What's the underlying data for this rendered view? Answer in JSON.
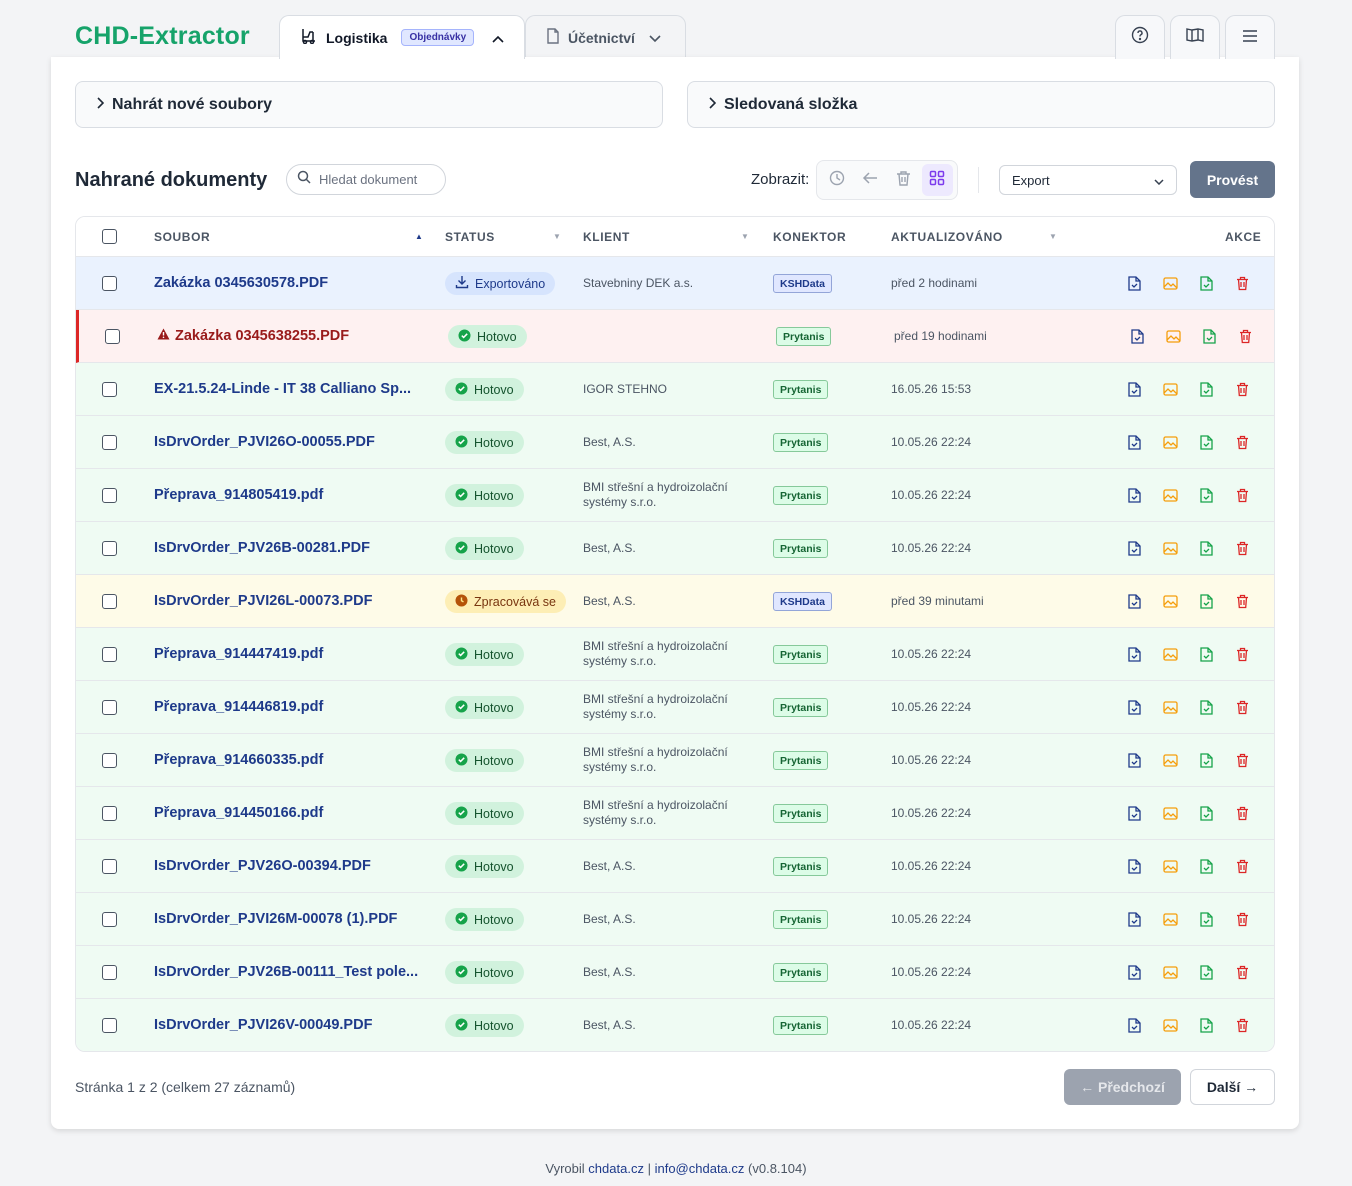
{
  "app": {
    "title": "CHD-Extractor"
  },
  "tabs": [
    {
      "label": "Logistika",
      "badge": "Objednávky",
      "icon": "forklift-icon",
      "active": true
    },
    {
      "label": "Účetnictví",
      "icon": "document-icon",
      "active": false
    }
  ],
  "top_buttons": [
    "help-icon",
    "book-icon",
    "menu-icon"
  ],
  "accordions": {
    "upload": "Nahrát nové soubory",
    "watched": "Sledovaná složka"
  },
  "section": {
    "title": "Nahrané dokumenty",
    "search_placeholder": "Hledat dokument",
    "view_label": "Zobrazit:",
    "export_value": "Export",
    "run_label": "Provést"
  },
  "table": {
    "headers": {
      "file": "SOUBOR",
      "status": "STATUS",
      "client": "KLIENT",
      "connector": "KONEKTOR",
      "updated": "AKTUALIZOVÁNO",
      "actions": "AKCE"
    },
    "rows": [
      {
        "file": "Zakázka 0345630578.PDF",
        "status": "Exportováno",
        "client": "Stavebniny DEK a.s.",
        "connector": "KSHData",
        "updated": "před 2 hodinami",
        "tone": "blue"
      },
      {
        "file": "Zakázka 0345638255.PDF",
        "status": "Hotovo",
        "client": "",
        "connector": "Prytanis",
        "updated": "před 19 hodinami",
        "tone": "red",
        "warning": true
      },
      {
        "file": "EX-21.5.24-Linde - IT 38 Calliano Sp...",
        "status": "Hotovo",
        "client": "IGOR STEHNO",
        "connector": "Prytanis",
        "updated": "16.05.26 15:53",
        "tone": "green"
      },
      {
        "file": "IsDrvOrder_PJVI26O-00055.PDF",
        "status": "Hotovo",
        "client": "Best, A.S.",
        "connector": "Prytanis",
        "updated": "10.05.26 22:24",
        "tone": "green"
      },
      {
        "file": "Přeprava_914805419.pdf",
        "status": "Hotovo",
        "client": "BMI střešní a hydroizolační systémy s.r.o.",
        "connector": "Prytanis",
        "updated": "10.05.26 22:24",
        "tone": "green"
      },
      {
        "file": "IsDrvOrder_PJV26B-00281.PDF",
        "status": "Hotovo",
        "client": "Best, A.S.",
        "connector": "Prytanis",
        "updated": "10.05.26 22:24",
        "tone": "green"
      },
      {
        "file": "IsDrvOrder_PJVI26L-00073.PDF",
        "status": "Zpracovává se",
        "client": "Best, A.S.",
        "connector": "KSHData",
        "updated": "před 39 minutami",
        "tone": "yellow"
      },
      {
        "file": "Přeprava_914447419.pdf",
        "status": "Hotovo",
        "client": "BMI střešní a hydroizolační systémy s.r.o.",
        "connector": "Prytanis",
        "updated": "10.05.26 22:24",
        "tone": "green"
      },
      {
        "file": "Přeprava_914446819.pdf",
        "status": "Hotovo",
        "client": "BMI střešní a hydroizolační systémy s.r.o.",
        "connector": "Prytanis",
        "updated": "10.05.26 22:24",
        "tone": "green"
      },
      {
        "file": "Přeprava_914660335.pdf",
        "status": "Hotovo",
        "client": "BMI střešní a hydroizolační systémy s.r.o.",
        "connector": "Prytanis",
        "updated": "10.05.26 22:24",
        "tone": "green"
      },
      {
        "file": "Přeprava_914450166.pdf",
        "status": "Hotovo",
        "client": "BMI střešní a hydroizolační systémy s.r.o.",
        "connector": "Prytanis",
        "updated": "10.05.26 22:24",
        "tone": "green"
      },
      {
        "file": "IsDrvOrder_PJV26O-00394.PDF",
        "status": "Hotovo",
        "client": "Best, A.S.",
        "connector": "Prytanis",
        "updated": "10.05.26 22:24",
        "tone": "green"
      },
      {
        "file": "IsDrvOrder_PJVI26M-00078 (1).PDF",
        "status": "Hotovo",
        "client": "Best, A.S.",
        "connector": "Prytanis",
        "updated": "10.05.26 22:24",
        "tone": "green"
      },
      {
        "file": "IsDrvOrder_PJV26B-00111_Test pole....",
        "status": "Hotovo",
        "client": "Best, A.S.",
        "connector": "Prytanis",
        "updated": "10.05.26 22:24",
        "tone": "green"
      },
      {
        "file": "IsDrvOrder_PJVI26V-00049.PDF",
        "status": "Hotovo",
        "client": "Best, A.S.",
        "connector": "Prytanis",
        "updated": "10.05.26 22:24",
        "tone": "green"
      }
    ]
  },
  "pagination": {
    "summary": "Stránka 1 z 2 (celkem 27 záznamů)",
    "prev_label": "← Předchozí",
    "next_label": "Další →"
  },
  "footer": {
    "prefix": "Vyrobil",
    "site": "chdata.cz",
    "separator": "|",
    "email": "info@chdata.cz",
    "version": "(v0.8.104)"
  },
  "colors": {
    "brand": "#16a36a",
    "link": "#1e3a8a",
    "danger": "#dc2626",
    "success": "#16a34a",
    "warning": "#f59e0b"
  }
}
